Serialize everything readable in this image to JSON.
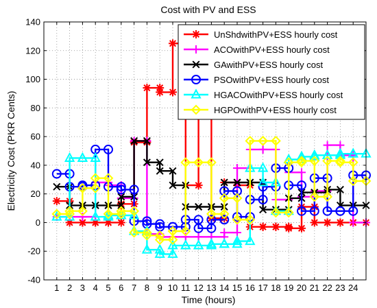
{
  "chart_data": {
    "type": "line",
    "title": "Cost with PV and ESS",
    "xlabel": "Time (hours)",
    "ylabel": "Electricity Cost (PKR Cents)",
    "x": [
      1,
      2,
      3,
      4,
      5,
      6,
      7,
      8,
      9,
      10,
      11,
      12,
      13,
      14,
      15,
      16,
      17,
      18,
      19,
      20,
      21,
      22,
      23,
      24
    ],
    "xlim": [
      0,
      25
    ],
    "ylim": [
      -40,
      140
    ],
    "yticks": [
      -40,
      -20,
      0,
      20,
      40,
      60,
      80,
      100,
      120,
      140
    ],
    "grid": true,
    "legend_position": "top-right",
    "series": [
      {
        "name": "UnShdwithPV+ESS hourly cost",
        "color": "#ff0000",
        "marker": "asterisk",
        "values": [
          15,
          0,
          0,
          0,
          0,
          13,
          56,
          94,
          91,
          125,
          26,
          77,
          3,
          28,
          26,
          -3,
          -3,
          -3,
          -4,
          11,
          0,
          0,
          0,
          0
        ]
      },
      {
        "name": "ACOwithPV+ESS hourly cost",
        "color": "#ff00ff",
        "marker": "plus",
        "values": [
          4,
          4,
          4,
          28,
          26,
          17,
          57,
          -8,
          -10,
          -10,
          -10,
          -10,
          -10,
          -7,
          38,
          51,
          51,
          16,
          35,
          18,
          22,
          54,
          47,
          0
        ]
      },
      {
        "name": "GAwithPV+ESS hourly cost",
        "color": "#000000",
        "marker": "x",
        "values": [
          25,
          12,
          12,
          12,
          12,
          18,
          57,
          42,
          36,
          26,
          11,
          11,
          11,
          28,
          28,
          28,
          9,
          9,
          17,
          21,
          21,
          23,
          12,
          12
        ]
      },
      {
        "name": "PSOwithPV+ESS hourly cost",
        "color": "#0000ff",
        "marker": "circle",
        "values": [
          34,
          25,
          26,
          51,
          25,
          23,
          1,
          -1,
          -3,
          -3,
          2,
          -4,
          2,
          22,
          4,
          16,
          25,
          38,
          26,
          8,
          31,
          8,
          8,
          33
        ]
      },
      {
        "name": "HGACOwithPV+ESS hourly cost",
        "color": "#00ffff",
        "marker": "triangle",
        "values": [
          4,
          45,
          45,
          4,
          5,
          5,
          -6,
          -19,
          -22,
          -16,
          -16,
          -16,
          -15,
          -15,
          -13,
          38,
          28,
          8,
          44,
          46,
          47,
          47,
          48,
          48
        ]
      },
      {
        "name": "HGPOwithPV+ESS hourly cost",
        "color": "#ffff00",
        "marker": "diamond",
        "values": [
          6,
          8,
          24,
          31,
          6,
          8,
          -7,
          -9,
          -12,
          -6,
          42,
          42,
          6,
          17,
          2,
          57,
          57,
          7,
          42,
          43,
          18,
          43,
          42,
          29
        ]
      }
    ]
  }
}
